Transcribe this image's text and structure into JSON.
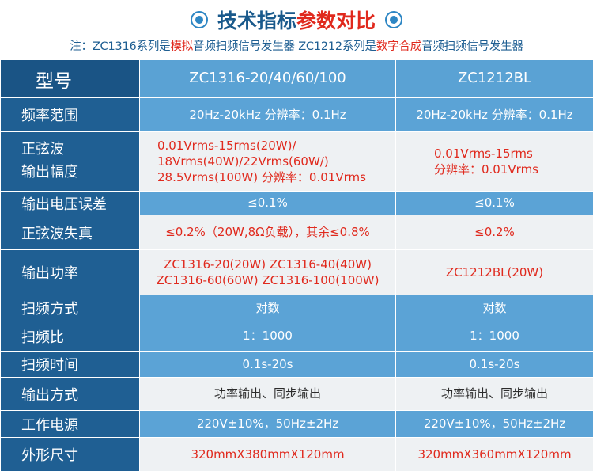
{
  "header": {
    "title_part1": "技术指标",
    "title_part2": "参数对比"
  },
  "note": {
    "prefix": "注：ZC1316系列是",
    "analog": "模拟",
    "mid": "音频扫频信号发生器  ZC1212系列是",
    "digital": "数字合成",
    "suffix": "音频扫频信号发生器"
  },
  "table": {
    "head": {
      "label": "型号",
      "col1": "ZC1316-20/40/60/100",
      "col2": "ZC1212BL"
    },
    "rows": [
      {
        "label": "频率范围",
        "col1": "20Hz-20kHz  分辨率：0.1Hz",
        "col2": "20Hz-20kHz  分辨率：0.1Hz"
      },
      {
        "label_line1": "正弦波",
        "label_line2": "输出幅度",
        "col1_line1": "0.01Vrms-15rms(20W)/",
        "col1_line2": "18Vrms(40W)/22Vrms(60W/)",
        "col1_line3": "28.5Vrms(100W) 分辨率：0.01Vrms",
        "col2_line1": "0.01Vrms-15rms",
        "col2_line2": "分辨率：0.01Vrms"
      },
      {
        "label": "输出电压误差",
        "col1": "≤0.1%",
        "col2": "≤0.1%"
      },
      {
        "label": "正弦波失真",
        "col1": "≤0.2%（20W,8Ω负载），其余≤0.8%",
        "col2": "≤0.2%"
      },
      {
        "label": "输出功率",
        "col1_line1": "ZC1316-20(20W) ZC1316-40(40W)",
        "col1_line2": "ZC1316-60(60W) ZC1316-100(100W)",
        "col2": "ZC1212BL(20W)"
      },
      {
        "label": "扫频方式",
        "col1": "对数",
        "col2": "对数"
      },
      {
        "label": "扫频比",
        "col1": "1：1000",
        "col2": "1：1000"
      },
      {
        "label": "扫频时间",
        "col1": "0.1s-20s",
        "col2": "0.1s-20s"
      },
      {
        "label": "输出方式",
        "col1": "功率输出、同步输出",
        "col2": "功率输出、同步输出"
      },
      {
        "label": "工作电源",
        "col1": "220V±10%，50Hz±2Hz",
        "col2": "220V±10%，50Hz±2Hz"
      },
      {
        "label": "外形尺寸",
        "col1": "320mmX380mmX120mm",
        "col2": "320mmX360mmX120mm"
      }
    ]
  },
  "colors": {
    "label_column": "#1f5f93",
    "header_row": "#5aa2d4",
    "light_row": "#eef1f3",
    "blue_row": "#5ba3d6",
    "accent_red": "#e0291d"
  },
  "icons": [
    "circle-bullet-icon"
  ]
}
